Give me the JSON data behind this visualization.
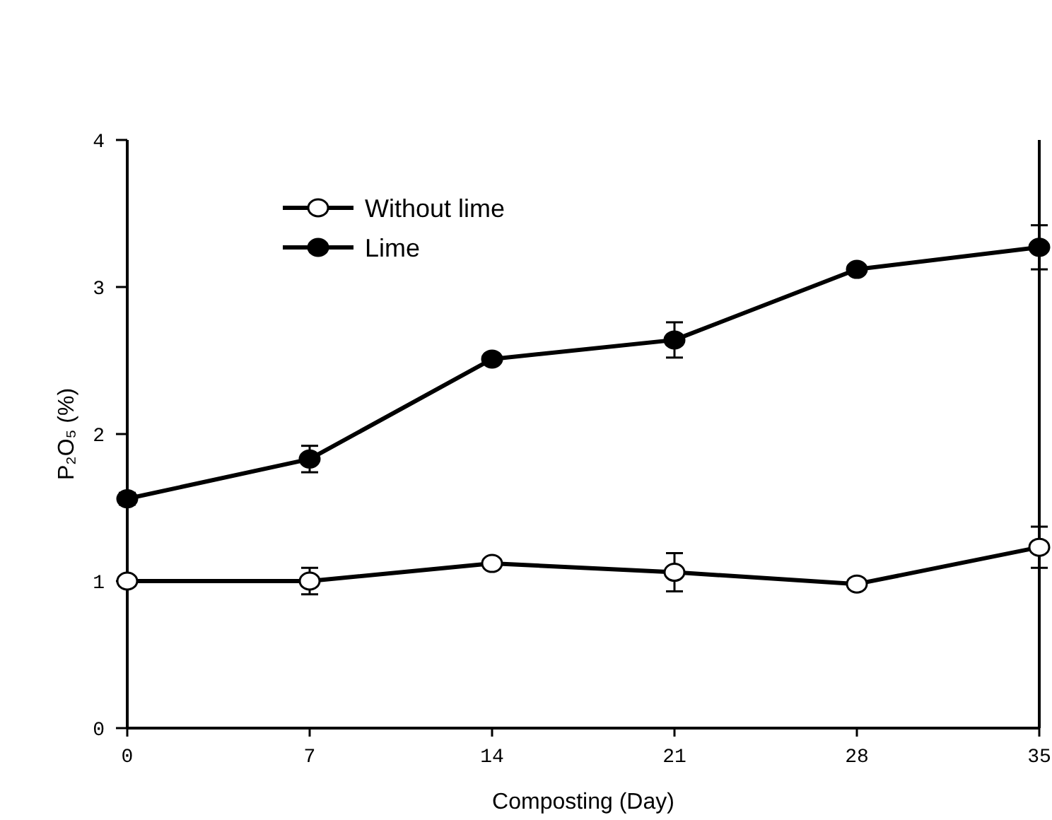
{
  "chart_data": {
    "type": "line",
    "xlabel": "Composting (Day)",
    "ylabel": "P₂O₅ (%)",
    "x": [
      0,
      7,
      14,
      21,
      28,
      35
    ],
    "series": [
      {
        "name": "Without lime",
        "color": "#000000",
        "values": [
          1.0,
          1.0,
          1.12,
          1.06,
          0.98,
          1.23
        ],
        "errors": [
          0.03,
          0.09,
          null,
          0.13,
          null,
          0.14
        ]
      },
      {
        "name": "Lime",
        "color": "#000000",
        "values": [
          1.56,
          1.83,
          2.51,
          2.64,
          3.12,
          3.27
        ],
        "errors": [
          0.04,
          0.09,
          null,
          0.12,
          null,
          0.15
        ]
      }
    ],
    "xlim": [
      0,
      35
    ],
    "xticks": [
      0,
      7,
      14,
      21,
      28,
      35
    ],
    "ylim": [
      0,
      4
    ],
    "yticks": [
      0,
      1,
      2,
      3,
      4
    ],
    "legend": "top left",
    "marker": "circle",
    "line_style": "solid"
  }
}
